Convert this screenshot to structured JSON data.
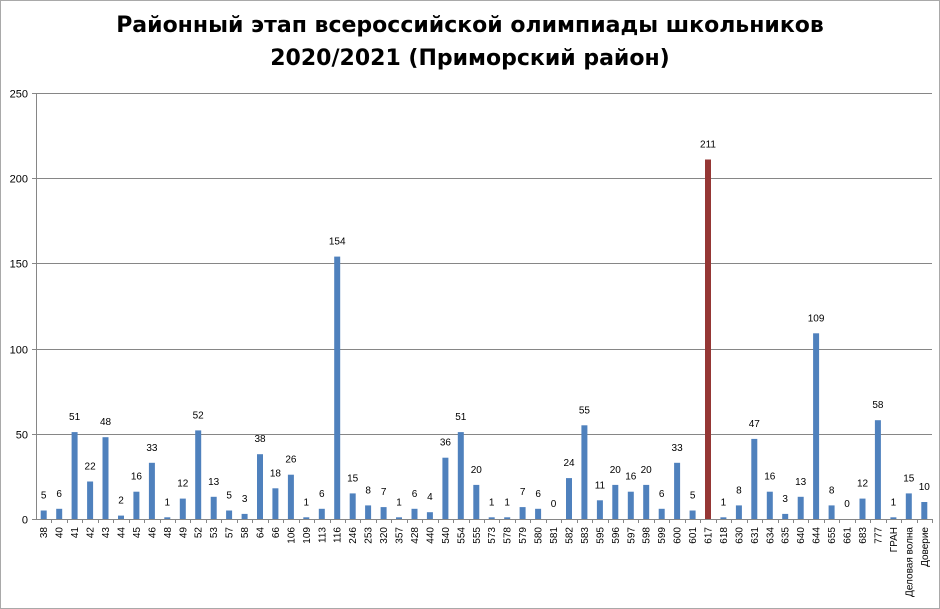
{
  "chart_data": {
    "type": "bar",
    "title_lines": [
      "Районный этап всероссийской олимпиады школьников",
      "2020/2021 (Приморский район)"
    ],
    "xlabel": "",
    "ylabel": "",
    "ylim": [
      0,
      250
    ],
    "yticks": [
      0,
      50,
      100,
      150,
      200,
      250
    ],
    "grid": true,
    "legend": "none",
    "colors": {
      "bar": "#4f81bd",
      "highlight": "#953735",
      "grid": "#868686"
    },
    "highlight_category": "617",
    "categories": [
      "38",
      "40",
      "41",
      "42",
      "43",
      "44",
      "45",
      "46",
      "48",
      "49",
      "52",
      "53",
      "57",
      "58",
      "64",
      "66",
      "106",
      "109",
      "113",
      "116",
      "246",
      "253",
      "320",
      "357",
      "428",
      "440",
      "540",
      "554",
      "555",
      "573",
      "578",
      "579",
      "580",
      "581",
      "582",
      "583",
      "595",
      "596",
      "597",
      "598",
      "599",
      "600",
      "601",
      "617",
      "618",
      "630",
      "631",
      "634",
      "635",
      "640",
      "644",
      "655",
      "661",
      "683",
      "777",
      "ГРАН",
      "Деловая волна",
      "Доверие"
    ],
    "values": [
      5,
      6,
      51,
      22,
      48,
      2,
      16,
      33,
      1,
      12,
      52,
      13,
      5,
      3,
      38,
      18,
      26,
      1,
      6,
      154,
      15,
      8,
      7,
      1,
      6,
      4,
      36,
      51,
      20,
      1,
      1,
      7,
      6,
      0,
      24,
      55,
      11,
      20,
      16,
      20,
      6,
      33,
      5,
      211,
      1,
      8,
      47,
      16,
      3,
      13,
      109,
      8,
      0,
      12,
      58,
      1,
      15,
      10
    ]
  }
}
